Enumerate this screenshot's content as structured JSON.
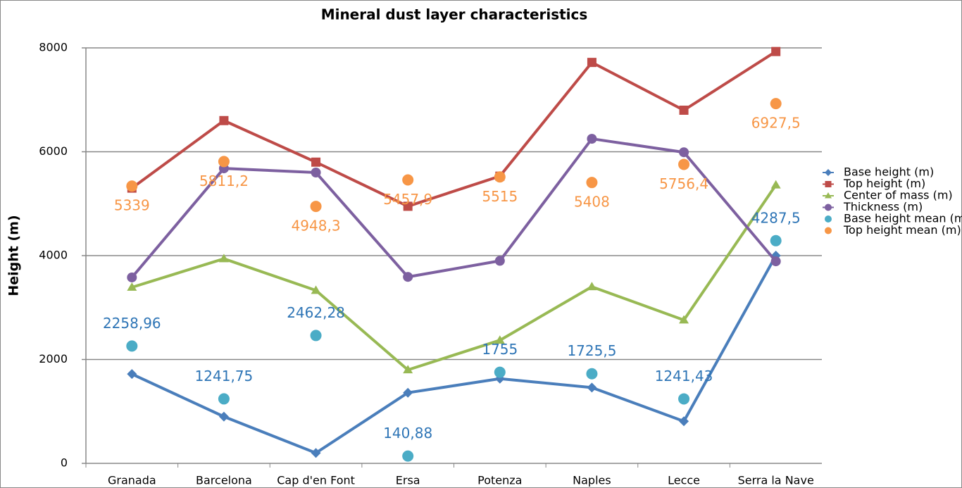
{
  "chart_data": {
    "type": "line",
    "title": "Mineral dust layer characteristics",
    "y_label": "Height (m)",
    "categories": [
      "Granada",
      "Barcelona",
      "Cap d'en Font",
      "Ersa",
      "Potenza",
      "Naples",
      "Lecce",
      "Serra la Nave"
    ],
    "ylim": [
      0,
      8000
    ],
    "yticks": [
      0,
      2000,
      4000,
      6000,
      8000
    ],
    "grid": true,
    "legend": "right",
    "series": [
      {
        "name": "Base height (m)",
        "color": "#4a7ebb",
        "marker": "diamond",
        "values": [
          1720,
          900,
          200,
          1360,
          1630,
          1460,
          810,
          4000
        ]
      },
      {
        "name": "Top height (m)",
        "color": "#be4b48",
        "marker": "square",
        "values": [
          5300,
          6600,
          5800,
          4950,
          5530,
          7720,
          6800,
          7930
        ]
      },
      {
        "name": "Center of mass (m)",
        "color": "#98b954",
        "marker": "triangle",
        "values": [
          3390,
          3940,
          3330,
          1800,
          2370,
          3400,
          2760,
          5360
        ]
      },
      {
        "name": "Thickness (m)",
        "color": "#7d60a0",
        "marker": "circle",
        "values": [
          3580,
          5680,
          5600,
          3590,
          3900,
          6250,
          5990,
          3890
        ]
      },
      {
        "name": "Base height mean (m)",
        "color": "#4bacc6",
        "label_color": "#2e75b6",
        "marker": "dot",
        "label_position": "above",
        "values": [
          2258.96,
          1241.75,
          2462.28,
          140.88,
          1755,
          1725.5,
          1241.43,
          4287.5
        ],
        "value_labels": [
          "2258,96",
          "1241,75",
          "2462,28",
          "140,88",
          "1755",
          "1725,5",
          "1241,43",
          "4287,5"
        ]
      },
      {
        "name": "Top height mean (m)",
        "color": "#f79646",
        "label_color": "#f79646",
        "marker": "dot",
        "label_position": "below",
        "values": [
          5339,
          5811.2,
          4948.3,
          5457.9,
          5515,
          5408,
          5756.4,
          6927.5
        ],
        "value_labels": [
          "5339",
          "5811,2",
          "4948,3",
          "5457,9",
          "5515",
          "5408",
          "5756,4",
          "6927,5"
        ]
      }
    ]
  }
}
